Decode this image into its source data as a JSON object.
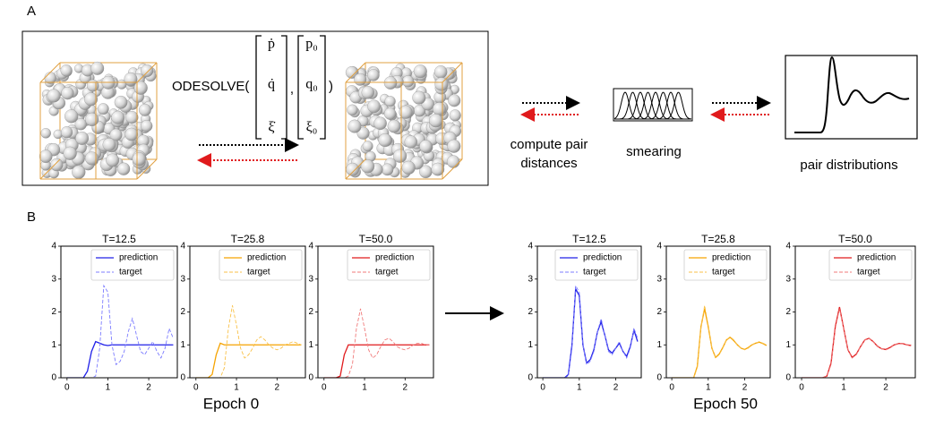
{
  "panel_a": {
    "label": "A",
    "odesolve": "ODESOLVE(",
    "state": [
      "ṗ",
      "q̇",
      "ξ̇"
    ],
    "separator": ",",
    "initial": [
      "p₀",
      "q₀",
      "ξ₀"
    ],
    "close": ")",
    "compute": [
      "compute pair",
      "distances"
    ],
    "smearing": "smearing",
    "pair_distributions": "pair distributions"
  },
  "captions": {
    "panel_b": "B",
    "epoch_0": "Epoch 0",
    "epoch_50": "Epoch 50"
  },
  "chart_data": [
    {
      "type": "line",
      "title": "T=12.5",
      "x": [
        0,
        0.1,
        0.2,
        0.3,
        0.4,
        0.5,
        0.6,
        0.7,
        0.8,
        0.9,
        1.0,
        1.1,
        1.2,
        1.3,
        1.4,
        1.5,
        1.6,
        1.7,
        1.8,
        1.9,
        2.0,
        2.1,
        2.2,
        2.3,
        2.4,
        2.5,
        2.6
      ],
      "series": [
        {
          "name": "prediction",
          "color": "#2020e8",
          "linestyle": "solid",
          "values": [
            0,
            0,
            0,
            0,
            0,
            0.2,
            0.8,
            1.1,
            1.05,
            1.0,
            0.98,
            1.0,
            1.0,
            1.0,
            1.0,
            1.0,
            1.0,
            1.0,
            1.0,
            1.0,
            1.0,
            1.0,
            1.0,
            1.0,
            1.0,
            1.0,
            1.0
          ]
        },
        {
          "name": "target",
          "color": "#7c7cff",
          "linestyle": "dashed",
          "values": [
            0,
            0,
            0,
            0,
            0,
            0,
            0,
            0.05,
            0.9,
            2.8,
            2.6,
            1.0,
            0.4,
            0.5,
            0.8,
            1.4,
            1.8,
            1.3,
            0.8,
            0.7,
            0.9,
            1.1,
            0.8,
            0.6,
            0.9,
            1.5,
            1.2
          ]
        }
      ],
      "xlim": [
        -0.15,
        2.7
      ],
      "ylim": [
        0,
        4
      ],
      "xticks": [
        0,
        1,
        2
      ],
      "yticks": [
        0,
        1,
        2,
        3,
        4
      ],
      "legend": "upper right"
    },
    {
      "type": "line",
      "title": "T=25.8",
      "x": [
        0,
        0.1,
        0.2,
        0.3,
        0.4,
        0.5,
        0.6,
        0.7,
        0.8,
        0.9,
        1.0,
        1.1,
        1.2,
        1.3,
        1.4,
        1.5,
        1.6,
        1.7,
        1.8,
        1.9,
        2.0,
        2.1,
        2.2,
        2.3,
        2.4,
        2.5,
        2.6
      ],
      "series": [
        {
          "name": "prediction",
          "color": "#f5a300",
          "linestyle": "solid",
          "values": [
            0,
            0,
            0,
            0,
            0.1,
            0.7,
            1.05,
            1.0,
            1.0,
            1.0,
            1.0,
            1.0,
            1.0,
            1.0,
            1.0,
            1.0,
            1.0,
            1.0,
            1.0,
            1.0,
            1.0,
            1.0,
            1.0,
            1.0,
            1.0,
            1.0,
            1.0
          ]
        },
        {
          "name": "target",
          "color": "#f9c24a",
          "linestyle": "dashed",
          "values": [
            0,
            0,
            0,
            0,
            0,
            0,
            0,
            0.3,
            1.5,
            2.2,
            1.6,
            0.9,
            0.6,
            0.7,
            0.9,
            1.15,
            1.25,
            1.15,
            1.0,
            0.9,
            0.85,
            0.9,
            1.0,
            1.05,
            1.1,
            1.05,
            1.0
          ]
        }
      ],
      "xlim": [
        -0.15,
        2.7
      ],
      "ylim": [
        0,
        4
      ],
      "xticks": [
        0,
        1,
        2
      ],
      "yticks": [
        0,
        1,
        2,
        3,
        4
      ],
      "legend": "upper right"
    },
    {
      "type": "line",
      "title": "T=50.0",
      "x": [
        0,
        0.1,
        0.2,
        0.3,
        0.4,
        0.5,
        0.6,
        0.7,
        0.8,
        0.9,
        1.0,
        1.1,
        1.2,
        1.3,
        1.4,
        1.5,
        1.6,
        1.7,
        1.8,
        1.9,
        2.0,
        2.1,
        2.2,
        2.3,
        2.4,
        2.5,
        2.6
      ],
      "series": [
        {
          "name": "prediction",
          "color": "#e01a1c",
          "linestyle": "solid",
          "values": [
            0,
            0,
            0,
            0,
            0.05,
            0.7,
            1.0,
            1.0,
            1.0,
            1.0,
            1.0,
            1.0,
            1.0,
            1.0,
            1.0,
            1.0,
            1.0,
            1.0,
            1.0,
            1.0,
            1.0,
            1.0,
            1.0,
            1.0,
            1.0,
            1.0,
            1.0
          ]
        },
        {
          "name": "target",
          "color": "#f07a7a",
          "linestyle": "dashed",
          "values": [
            0,
            0,
            0,
            0,
            0,
            0,
            0.05,
            0.4,
            1.5,
            2.1,
            1.5,
            0.85,
            0.6,
            0.7,
            0.95,
            1.15,
            1.2,
            1.1,
            0.95,
            0.88,
            0.85,
            0.9,
            1.0,
            1.05,
            1.05,
            1.0,
            1.0
          ]
        }
      ],
      "xlim": [
        -0.15,
        2.7
      ],
      "ylim": [
        0,
        4
      ],
      "xticks": [
        0,
        1,
        2
      ],
      "yticks": [
        0,
        1,
        2,
        3,
        4
      ],
      "legend": "upper right"
    },
    {
      "type": "line",
      "title": "T=12.5",
      "x": [
        0,
        0.1,
        0.2,
        0.3,
        0.4,
        0.5,
        0.6,
        0.7,
        0.8,
        0.9,
        1.0,
        1.1,
        1.2,
        1.3,
        1.4,
        1.5,
        1.6,
        1.7,
        1.8,
        1.9,
        2.0,
        2.1,
        2.2,
        2.3,
        2.4,
        2.5,
        2.6
      ],
      "series": [
        {
          "name": "prediction",
          "color": "#2020e8",
          "linestyle": "solid",
          "values": [
            0,
            0,
            0,
            0,
            0,
            0,
            0,
            0.1,
            1.0,
            2.7,
            2.5,
            1.0,
            0.45,
            0.55,
            0.85,
            1.4,
            1.7,
            1.3,
            0.85,
            0.75,
            0.9,
            1.05,
            0.8,
            0.65,
            0.95,
            1.45,
            1.1
          ]
        },
        {
          "name": "target",
          "color": "#7c7cff",
          "linestyle": "dashed",
          "values": [
            0,
            0,
            0,
            0,
            0,
            0,
            0,
            0.05,
            0.9,
            2.8,
            2.6,
            1.0,
            0.4,
            0.5,
            0.8,
            1.4,
            1.8,
            1.3,
            0.8,
            0.7,
            0.9,
            1.1,
            0.8,
            0.6,
            0.9,
            1.5,
            1.2
          ]
        }
      ],
      "xlim": [
        -0.15,
        2.7
      ],
      "ylim": [
        0,
        4
      ],
      "xticks": [
        0,
        1,
        2
      ],
      "yticks": [
        0,
        1,
        2,
        3,
        4
      ],
      "legend": "upper right"
    },
    {
      "type": "line",
      "title": "T=25.8",
      "x": [
        0,
        0.1,
        0.2,
        0.3,
        0.4,
        0.5,
        0.6,
        0.7,
        0.8,
        0.9,
        1.0,
        1.1,
        1.2,
        1.3,
        1.4,
        1.5,
        1.6,
        1.7,
        1.8,
        1.9,
        2.0,
        2.1,
        2.2,
        2.3,
        2.4,
        2.5,
        2.6
      ],
      "series": [
        {
          "name": "prediction",
          "color": "#f5a300",
          "linestyle": "solid",
          "values": [
            0,
            0,
            0,
            0,
            0,
            0,
            0,
            0.35,
            1.55,
            2.1,
            1.55,
            0.9,
            0.62,
            0.72,
            0.92,
            1.15,
            1.23,
            1.13,
            1.0,
            0.9,
            0.86,
            0.92,
            1.0,
            1.05,
            1.08,
            1.04,
            0.98
          ]
        },
        {
          "name": "target",
          "color": "#f9c24a",
          "linestyle": "dashed",
          "values": [
            0,
            0,
            0,
            0,
            0,
            0,
            0,
            0.3,
            1.5,
            2.2,
            1.6,
            0.9,
            0.6,
            0.7,
            0.9,
            1.15,
            1.25,
            1.15,
            1.0,
            0.9,
            0.85,
            0.9,
            1.0,
            1.05,
            1.1,
            1.05,
            1.0
          ]
        }
      ],
      "xlim": [
        -0.15,
        2.7
      ],
      "ylim": [
        0,
        4
      ],
      "xticks": [
        0,
        1,
        2
      ],
      "yticks": [
        0,
        1,
        2,
        3,
        4
      ],
      "legend": "upper right"
    },
    {
      "type": "line",
      "title": "T=50.0",
      "x": [
        0,
        0.1,
        0.2,
        0.3,
        0.4,
        0.5,
        0.6,
        0.7,
        0.8,
        0.9,
        1.0,
        1.1,
        1.2,
        1.3,
        1.4,
        1.5,
        1.6,
        1.7,
        1.8,
        1.9,
        2.0,
        2.1,
        2.2,
        2.3,
        2.4,
        2.5,
        2.6
      ],
      "series": [
        {
          "name": "prediction",
          "color": "#e01a1c",
          "linestyle": "solid",
          "values": [
            0,
            0,
            0,
            0,
            0,
            0,
            0.05,
            0.45,
            1.55,
            2.15,
            1.5,
            0.85,
            0.62,
            0.72,
            0.95,
            1.15,
            1.2,
            1.1,
            0.96,
            0.88,
            0.86,
            0.92,
            1.0,
            1.04,
            1.04,
            1.0,
            0.98
          ]
        },
        {
          "name": "target",
          "color": "#f07a7a",
          "linestyle": "dashed",
          "values": [
            0,
            0,
            0,
            0,
            0,
            0,
            0.05,
            0.4,
            1.5,
            2.1,
            1.5,
            0.85,
            0.6,
            0.7,
            0.95,
            1.15,
            1.2,
            1.1,
            0.95,
            0.88,
            0.85,
            0.9,
            1.0,
            1.05,
            1.05,
            1.0,
            1.0
          ]
        }
      ],
      "xlim": [
        -0.15,
        2.7
      ],
      "ylim": [
        0,
        4
      ],
      "xticks": [
        0,
        1,
        2
      ],
      "yticks": [
        0,
        1,
        2,
        3,
        4
      ],
      "legend": "upper right"
    }
  ]
}
